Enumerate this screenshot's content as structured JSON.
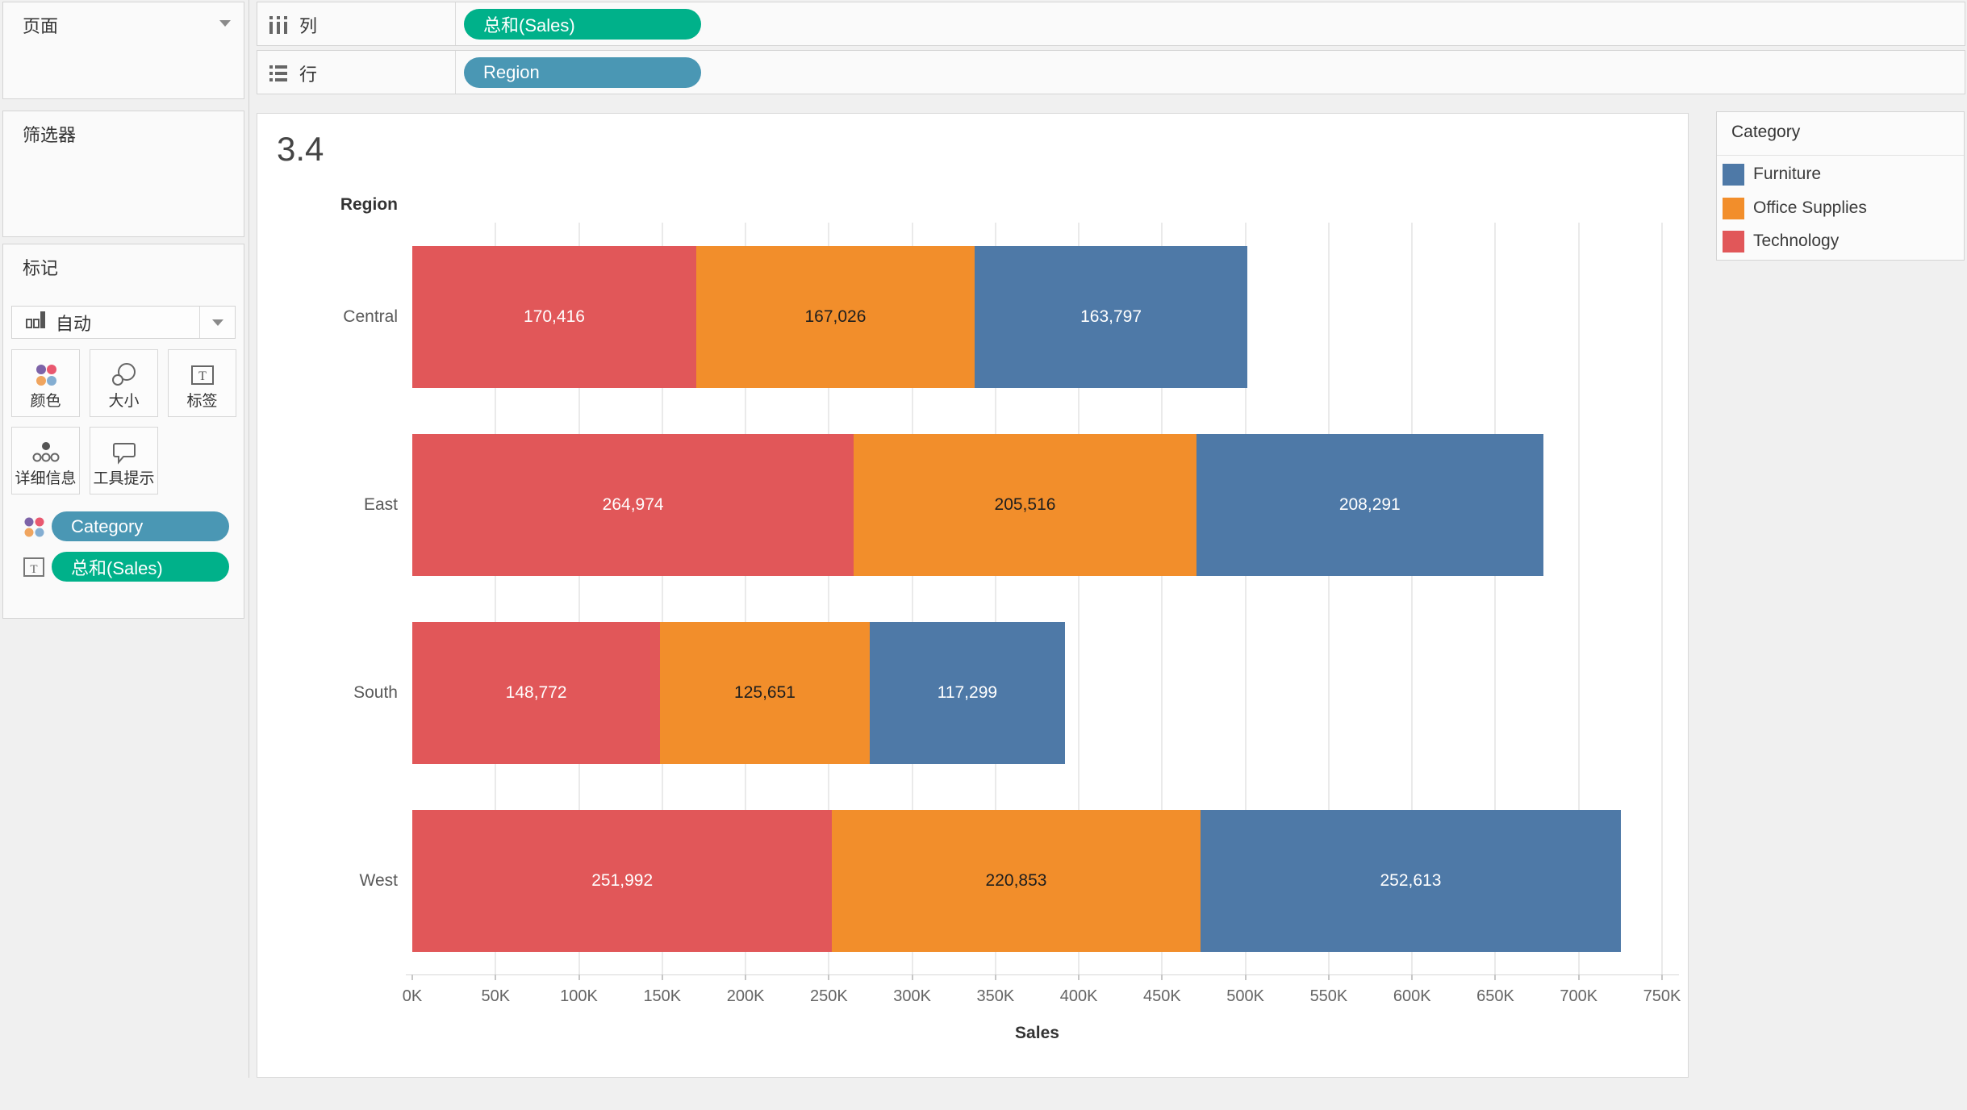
{
  "app": {
    "background": "#f0f0f0",
    "accent_green": "#00b18a",
    "accent_blue": "#4a97b4"
  },
  "sidebar": {
    "pages": {
      "label": "页面"
    },
    "filters": {
      "label": "筛选器"
    },
    "marks": {
      "label": "标记",
      "mark_type": {
        "label": "自动",
        "icon": "bar-chart-icon"
      },
      "buttons": [
        {
          "label": "颜色",
          "icon": "color-dots-icon"
        },
        {
          "label": "大小",
          "icon": "size-circles-icon"
        },
        {
          "label": "标签",
          "icon": "text-label-icon"
        },
        {
          "label": "详细信息",
          "icon": "detail-dots-icon"
        },
        {
          "label": "工具提示",
          "icon": "tooltip-bubble-icon"
        }
      ],
      "pills": [
        {
          "label": "Category",
          "color": "#4a97b4",
          "icon": "color-dots-icon"
        },
        {
          "label": "总和(Sales)",
          "color": "#00b18a",
          "icon": "text-label-icon"
        }
      ]
    }
  },
  "shelves": {
    "columns": {
      "label": "列",
      "pill": {
        "label": "总和(Sales)",
        "color": "#00b18a"
      }
    },
    "rows": {
      "label": "行",
      "pill": {
        "label": "Region",
        "color": "#4a97b4"
      }
    }
  },
  "chart_data": {
    "type": "bar",
    "orientation": "horizontal",
    "stacked": true,
    "title": "3.4",
    "row_field": "Region",
    "categories": [
      "Central",
      "East",
      "South",
      "West"
    ],
    "series": [
      {
        "name": "Technology",
        "color": "#e15759",
        "label_color": "#ffffff",
        "values": [
          170416,
          264974,
          148772,
          251992
        ]
      },
      {
        "name": "Office Supplies",
        "color": "#f28e2b",
        "label_color": "#1e1e1e",
        "values": [
          167026,
          205516,
          125651,
          220853
        ]
      },
      {
        "name": "Furniture",
        "color": "#4e79a7",
        "label_color": "#ffffff",
        "values": [
          163797,
          208291,
          117299,
          252613
        ]
      }
    ],
    "xlabel": "Sales",
    "xlim": [
      0,
      750000
    ],
    "x_tick_step": 50000,
    "x_ticks": [
      "0K",
      "50K",
      "100K",
      "150K",
      "200K",
      "250K",
      "300K",
      "350K",
      "400K",
      "450K",
      "500K",
      "550K",
      "600K",
      "650K",
      "700K",
      "750K"
    ],
    "grid": true,
    "legend": {
      "title": "Category",
      "position": "top-right",
      "items": [
        {
          "label": "Furniture",
          "color": "#4e79a7"
        },
        {
          "label": "Office Supplies",
          "color": "#f28e2b"
        },
        {
          "label": "Technology",
          "color": "#e15759"
        }
      ]
    }
  }
}
